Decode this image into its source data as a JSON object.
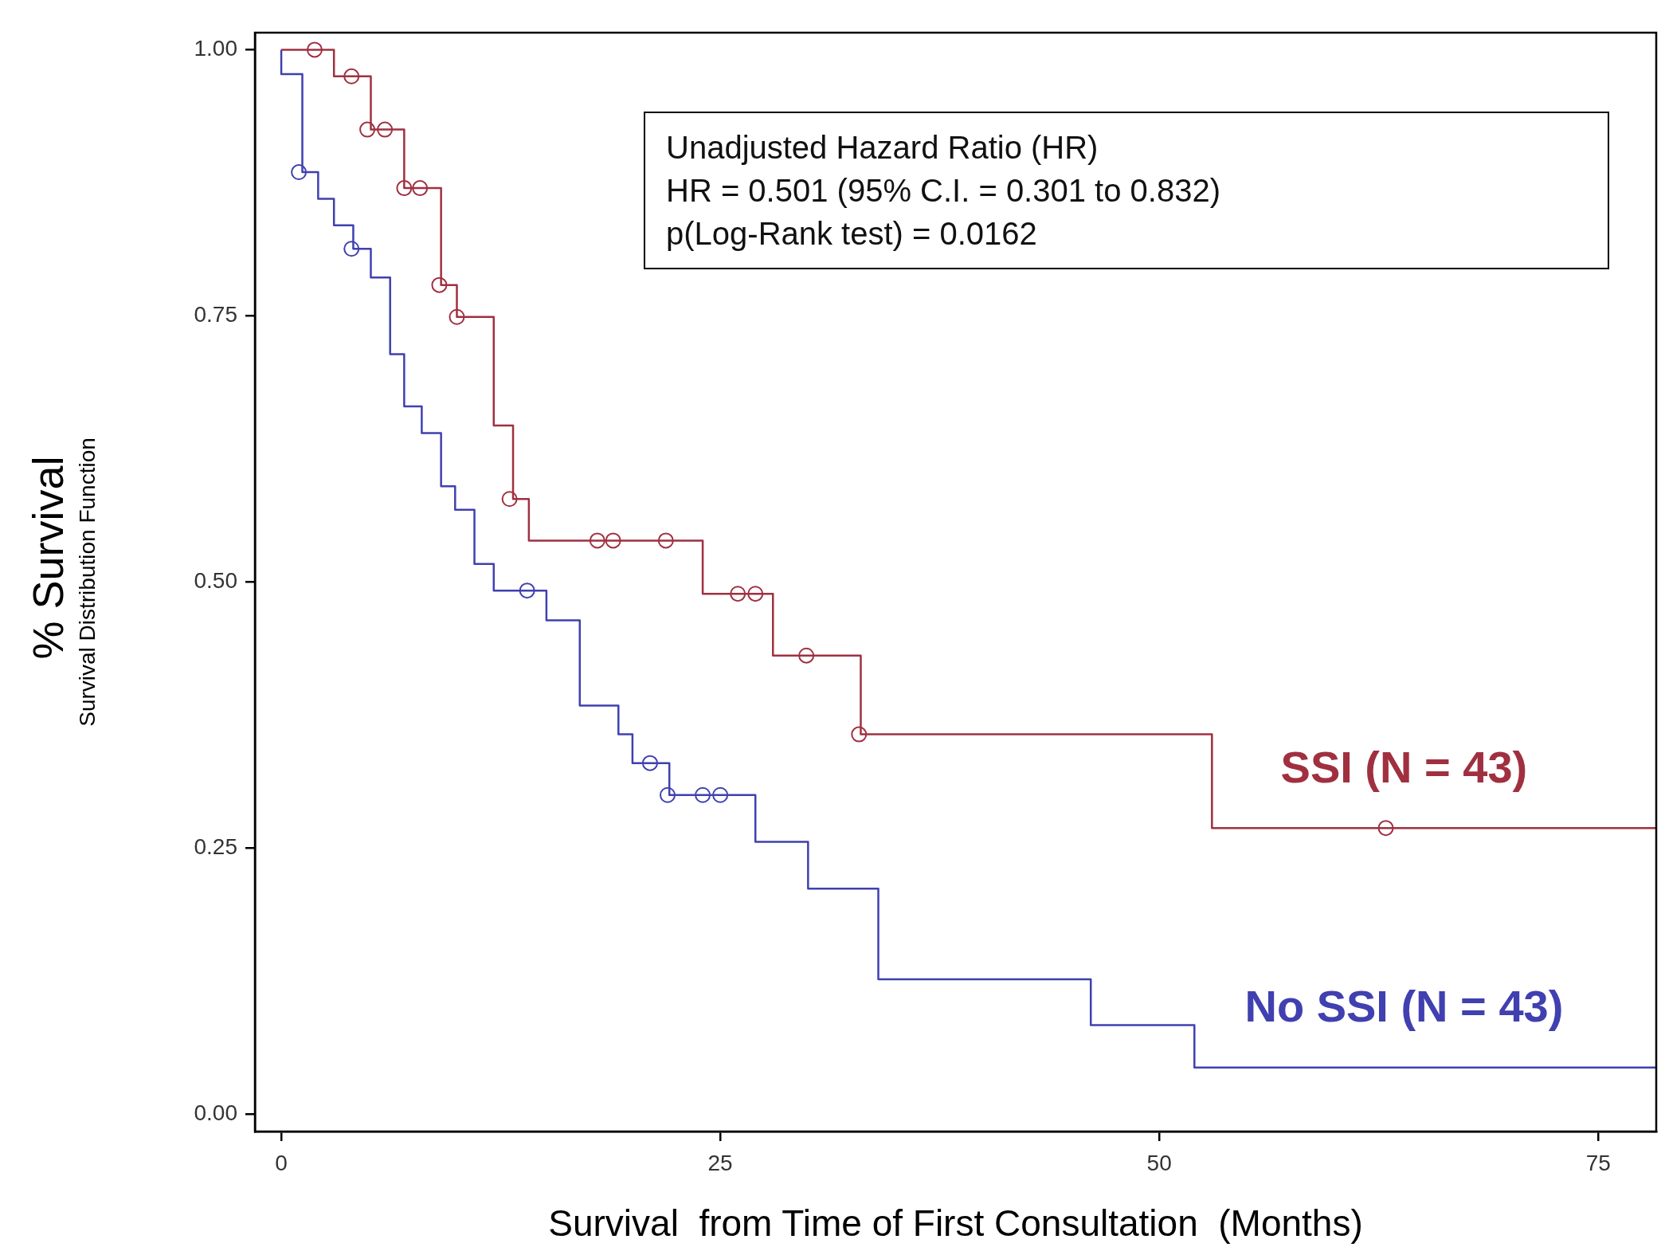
{
  "chart_data": {
    "type": "step",
    "xlabel": "Survival  from Time of First Consultation  (Months)",
    "ylabel": "Survival Distribution Function",
    "annotations": [
      "% Survival",
      "Unadjusted Hazard Ratio (HR)",
      "HR = 0.501 (95% C.I. = 0.301 to 0.832)",
      "p(Log-Rank test) = 0.0162"
    ],
    "xlim": [
      -1.5,
      78.3
    ],
    "xticks": [
      0,
      25,
      50,
      75
    ],
    "ylim": [
      -0.016,
      1.016
    ],
    "yticks": [
      {
        "value": 0,
        "label": "0.00"
      },
      {
        "value": 0.25,
        "label": "0.25"
      },
      {
        "value": 0.5,
        "label": "0.50"
      },
      {
        "value": 0.75,
        "label": "0.75"
      },
      {
        "value": 1,
        "label": "1.00"
      }
    ],
    "grid": false,
    "legend": false,
    "series": [
      {
        "type": "step",
        "name": "SSI (N = 43)",
        "color": "#a03040",
        "x": [
          0,
          3,
          5.1,
          7,
          9.1,
          10,
          12.1,
          13.2,
          14.1,
          24,
          28,
          33,
          53,
          78.3
        ],
        "values": [
          1,
          0.975,
          0.925,
          0.87,
          0.779,
          0.749,
          0.647,
          0.578,
          0.539,
          0.489,
          0.431,
          0.357,
          0.269,
          0.269
        ]
      },
      {
        "type": "scatter",
        "color": "#a03040",
        "marker": "circle",
        "x": [
          1.9,
          4,
          4.9,
          5.9,
          7,
          7.9,
          9,
          10,
          13,
          18,
          18.9,
          21.9,
          26,
          27,
          29.9,
          32.9,
          62.9
        ],
        "values": [
          1,
          0.975,
          0.925,
          0.925,
          0.87,
          0.87,
          0.779,
          0.749,
          0.578,
          0.539,
          0.539,
          0.539,
          0.489,
          0.489,
          0.431,
          0.357,
          0.269
        ]
      },
      {
        "type": "step",
        "name": "No SSI (N = 43)",
        "color": "#4040b0",
        "x": [
          0,
          0,
          1.2,
          2.1,
          3,
          4.1,
          5.1,
          6.2,
          7,
          8,
          9.1,
          9.9,
          11,
          12.1,
          15.1,
          17,
          19.2,
          20,
          22.1,
          27,
          30,
          34,
          46.1,
          52,
          78.3
        ],
        "values": [
          1,
          0.977,
          0.885,
          0.86,
          0.835,
          0.813,
          0.786,
          0.714,
          0.665,
          0.64,
          0.59,
          0.568,
          0.517,
          0.492,
          0.464,
          0.384,
          0.357,
          0.33,
          0.3,
          0.256,
          0.212,
          0.127,
          0.084,
          0.044,
          0.044
        ]
      },
      {
        "type": "scatter",
        "color": "#4040b0",
        "marker": "circle",
        "x": [
          1,
          4,
          14,
          21,
          22,
          24,
          25
        ],
        "values": [
          0.885,
          0.813,
          0.492,
          0.33,
          0.3,
          0.3,
          0.3
        ]
      }
    ]
  }
}
